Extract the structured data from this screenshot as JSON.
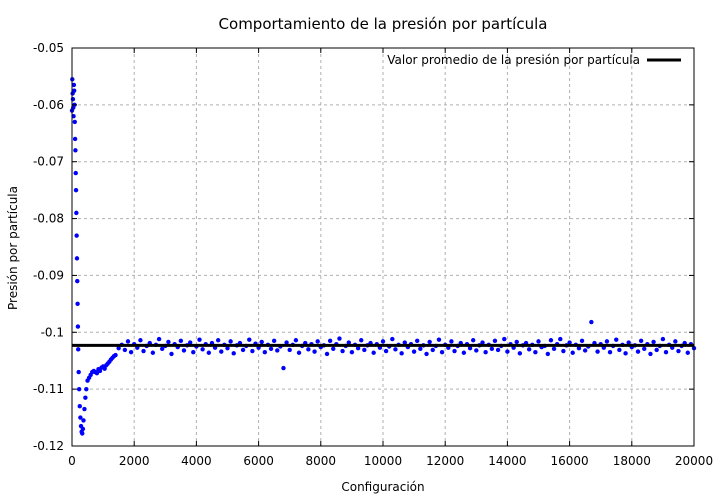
{
  "chart_data": {
    "type": "scatter",
    "title": "Comportamiento de la presión por partícula",
    "xlabel": "Configuración",
    "ylabel": "Presión por partícula",
    "xlim": [
      0,
      20000
    ],
    "ylim": [
      -0.12,
      -0.05
    ],
    "x_ticks": [
      0,
      2000,
      4000,
      6000,
      8000,
      10000,
      12000,
      14000,
      16000,
      18000,
      20000
    ],
    "y_ticks": [
      -0.05,
      -0.06,
      -0.07,
      -0.08,
      -0.09,
      -0.1,
      -0.11,
      -0.12
    ],
    "x_tick_labels": [
      "0",
      "2000",
      "4000",
      "6000",
      "8000",
      "10000",
      "12000",
      "14000",
      "16000",
      "18000",
      "20000"
    ],
    "y_tick_labels": [
      "-0.05",
      "-0.06",
      "-0.07",
      "-0.08",
      "-0.09",
      "-0.1",
      "-0.11",
      "-0.12"
    ],
    "grid": true,
    "legend_position": "top-right",
    "colors": {
      "points": "#0000ff",
      "mean_line": "#000000",
      "grid": "#b0b0b0"
    },
    "series": [
      {
        "type": "scatter",
        "color": "#0000ff",
        "points": [
          [
            0,
            -0.061
          ],
          [
            10,
            -0.0555
          ],
          [
            20,
            -0.058
          ],
          [
            30,
            -0.059
          ],
          [
            40,
            -0.0605
          ],
          [
            50,
            -0.062
          ],
          [
            60,
            -0.0565
          ],
          [
            70,
            -0.0575
          ],
          [
            80,
            -0.06
          ],
          [
            90,
            -0.063
          ],
          [
            100,
            -0.066
          ],
          [
            110,
            -0.068
          ],
          [
            120,
            -0.072
          ],
          [
            130,
            -0.075
          ],
          [
            140,
            -0.079
          ],
          [
            150,
            -0.083
          ],
          [
            160,
            -0.087
          ],
          [
            170,
            -0.091
          ],
          [
            180,
            -0.095
          ],
          [
            190,
            -0.099
          ],
          [
            200,
            -0.103
          ],
          [
            215,
            -0.107
          ],
          [
            230,
            -0.11
          ],
          [
            250,
            -0.113
          ],
          [
            270,
            -0.115
          ],
          [
            290,
            -0.1165
          ],
          [
            310,
            -0.1175
          ],
          [
            330,
            -0.1178
          ],
          [
            350,
            -0.117
          ],
          [
            370,
            -0.1155
          ],
          [
            400,
            -0.1135
          ],
          [
            430,
            -0.1115
          ],
          [
            460,
            -0.11
          ],
          [
            500,
            -0.1085
          ],
          [
            550,
            -0.108
          ],
          [
            600,
            -0.1075
          ],
          [
            650,
            -0.107
          ],
          [
            700,
            -0.1068
          ],
          [
            750,
            -0.107
          ],
          [
            800,
            -0.1072
          ],
          [
            850,
            -0.1065
          ],
          [
            900,
            -0.1068
          ],
          [
            950,
            -0.1062
          ],
          [
            1000,
            -0.106
          ],
          [
            1050,
            -0.1064
          ],
          [
            1100,
            -0.1058
          ],
          [
            1150,
            -0.1055
          ],
          [
            1200,
            -0.1052
          ],
          [
            1250,
            -0.1048
          ],
          [
            1300,
            -0.1045
          ],
          [
            1350,
            -0.1042
          ],
          [
            1400,
            -0.104
          ],
          [
            1500,
            -0.1028
          ],
          [
            1600,
            -0.1022
          ],
          [
            1700,
            -0.1031
          ],
          [
            1800,
            -0.1016
          ],
          [
            1900,
            -0.1035
          ],
          [
            2000,
            -0.1021
          ],
          [
            2100,
            -0.1027
          ],
          [
            2200,
            -0.1014
          ],
          [
            2300,
            -0.1033
          ],
          [
            2400,
            -0.1024
          ],
          [
            2500,
            -0.1019
          ],
          [
            2600,
            -0.1036
          ],
          [
            2700,
            -0.1022
          ],
          [
            2800,
            -0.1012
          ],
          [
            2900,
            -0.1029
          ],
          [
            3000,
            -0.1024
          ],
          [
            3100,
            -0.1017
          ],
          [
            3200,
            -0.1038
          ],
          [
            3300,
            -0.1021
          ],
          [
            3400,
            -0.1026
          ],
          [
            3500,
            -0.1015
          ],
          [
            3600,
            -0.1032
          ],
          [
            3700,
            -0.1023
          ],
          [
            3800,
            -0.1018
          ],
          [
            3900,
            -0.1035
          ],
          [
            4000,
            -0.1025
          ],
          [
            4100,
            -0.1013
          ],
          [
            4200,
            -0.103
          ],
          [
            4300,
            -0.1021
          ],
          [
            4400,
            -0.1036
          ],
          [
            4500,
            -0.1019
          ],
          [
            4600,
            -0.1027
          ],
          [
            4700,
            -0.1014
          ],
          [
            4800,
            -0.1034
          ],
          [
            4900,
            -0.1022
          ],
          [
            5000,
            -0.1028
          ],
          [
            5100,
            -0.1016
          ],
          [
            5200,
            -0.1037
          ],
          [
            5300,
            -0.1023
          ],
          [
            5400,
            -0.1019
          ],
          [
            5500,
            -0.1031
          ],
          [
            5600,
            -0.1024
          ],
          [
            5700,
            -0.1013
          ],
          [
            5800,
            -0.1033
          ],
          [
            5900,
            -0.102
          ],
          [
            6000,
            -0.1027
          ],
          [
            6100,
            -0.1017
          ],
          [
            6200,
            -0.1035
          ],
          [
            6300,
            -0.1022
          ],
          [
            6400,
            -0.1029
          ],
          [
            6500,
            -0.1015
          ],
          [
            6600,
            -0.1032
          ],
          [
            6700,
            -0.1025
          ],
          [
            6800,
            -0.1063
          ],
          [
            6900,
            -0.1018
          ],
          [
            7000,
            -0.1031
          ],
          [
            7100,
            -0.1022
          ],
          [
            7200,
            -0.1014
          ],
          [
            7300,
            -0.1036
          ],
          [
            7400,
            -0.1024
          ],
          [
            7500,
            -0.1019
          ],
          [
            7600,
            -0.103
          ],
          [
            7700,
            -0.1021
          ],
          [
            7800,
            -0.1034
          ],
          [
            7900,
            -0.1016
          ],
          [
            8000,
            -0.1026
          ],
          [
            8100,
            -0.1023
          ],
          [
            8200,
            -0.1038
          ],
          [
            8300,
            -0.1015
          ],
          [
            8400,
            -0.1029
          ],
          [
            8500,
            -0.1021
          ],
          [
            8600,
            -0.1011
          ],
          [
            8700,
            -0.1033
          ],
          [
            8800,
            -0.1024
          ],
          [
            8900,
            -0.1018
          ],
          [
            9000,
            -0.1035
          ],
          [
            9100,
            -0.1022
          ],
          [
            9200,
            -0.1028
          ],
          [
            9300,
            -0.1014
          ],
          [
            9400,
            -0.1031
          ],
          [
            9500,
            -0.1023
          ],
          [
            9600,
            -0.1019
          ],
          [
            9700,
            -0.1036
          ],
          [
            9800,
            -0.1021
          ],
          [
            9900,
            -0.1027
          ],
          [
            10000,
            -0.1016
          ],
          [
            10100,
            -0.1033
          ],
          [
            10200,
            -0.1025
          ],
          [
            10300,
            -0.1012
          ],
          [
            10400,
            -0.103
          ],
          [
            10500,
            -0.1022
          ],
          [
            10600,
            -0.1037
          ],
          [
            10700,
            -0.1018
          ],
          [
            10800,
            -0.1026
          ],
          [
            10900,
            -0.1021
          ],
          [
            11000,
            -0.1034
          ],
          [
            11100,
            -0.1015
          ],
          [
            11200,
            -0.1029
          ],
          [
            11300,
            -0.1023
          ],
          [
            11400,
            -0.1038
          ],
          [
            11500,
            -0.1017
          ],
          [
            11600,
            -0.1031
          ],
          [
            11700,
            -0.1024
          ],
          [
            11800,
            -0.1013
          ],
          [
            11900,
            -0.1035
          ],
          [
            12000,
            -0.1022
          ],
          [
            12100,
            -0.1027
          ],
          [
            12200,
            -0.1016
          ],
          [
            12300,
            -0.1033
          ],
          [
            12400,
            -0.1024
          ],
          [
            12500,
            -0.1019
          ],
          [
            12600,
            -0.1036
          ],
          [
            12700,
            -0.1021
          ],
          [
            12800,
            -0.1028
          ],
          [
            12900,
            -0.1014
          ],
          [
            13000,
            -0.1032
          ],
          [
            13100,
            -0.1023
          ],
          [
            13200,
            -0.1018
          ],
          [
            13300,
            -0.1035
          ],
          [
            13400,
            -0.1022
          ],
          [
            13500,
            -0.1029
          ],
          [
            13600,
            -0.1015
          ],
          [
            13700,
            -0.1031
          ],
          [
            13800,
            -0.1024
          ],
          [
            13900,
            -0.1012
          ],
          [
            14000,
            -0.1034
          ],
          [
            14100,
            -0.1021
          ],
          [
            14200,
            -0.1027
          ],
          [
            14300,
            -0.1017
          ],
          [
            14400,
            -0.1037
          ],
          [
            14500,
            -0.1023
          ],
          [
            14600,
            -0.1019
          ],
          [
            14700,
            -0.103
          ],
          [
            14800,
            -0.1022
          ],
          [
            14900,
            -0.1035
          ],
          [
            15000,
            -0.1016
          ],
          [
            15100,
            -0.1026
          ],
          [
            15200,
            -0.1024
          ],
          [
            15300,
            -0.1038
          ],
          [
            15400,
            -0.1014
          ],
          [
            15500,
            -0.1029
          ],
          [
            15600,
            -0.1021
          ],
          [
            15700,
            -0.1012
          ],
          [
            15800,
            -0.1033
          ],
          [
            15900,
            -0.1023
          ],
          [
            16000,
            -0.1018
          ],
          [
            16100,
            -0.1036
          ],
          [
            16200,
            -0.1022
          ],
          [
            16300,
            -0.1028
          ],
          [
            16400,
            -0.1015
          ],
          [
            16500,
            -0.1032
          ],
          [
            16600,
            -0.1025
          ],
          [
            16700,
            -0.0982
          ],
          [
            16800,
            -0.1019
          ],
          [
            16900,
            -0.1034
          ],
          [
            17000,
            -0.1021
          ],
          [
            17100,
            -0.1027
          ],
          [
            17200,
            -0.1016
          ],
          [
            17300,
            -0.1035
          ],
          [
            17400,
            -0.1024
          ],
          [
            17500,
            -0.1013
          ],
          [
            17600,
            -0.1031
          ],
          [
            17700,
            -0.1022
          ],
          [
            17800,
            -0.1037
          ],
          [
            17900,
            -0.1018
          ],
          [
            18000,
            -0.1026
          ],
          [
            18100,
            -0.1023
          ],
          [
            18200,
            -0.1034
          ],
          [
            18300,
            -0.1015
          ],
          [
            18400,
            -0.1029
          ],
          [
            18500,
            -0.1021
          ],
          [
            18600,
            -0.1038
          ],
          [
            18700,
            -0.1017
          ],
          [
            18800,
            -0.1031
          ],
          [
            18900,
            -0.1024
          ],
          [
            19000,
            -0.1012
          ],
          [
            19100,
            -0.1035
          ],
          [
            19200,
            -0.1022
          ],
          [
            19300,
            -0.1027
          ],
          [
            19400,
            -0.1016
          ],
          [
            19500,
            -0.1033
          ],
          [
            19600,
            -0.1024
          ],
          [
            19700,
            -0.1019
          ],
          [
            19800,
            -0.1036
          ],
          [
            19900,
            -0.1021
          ],
          [
            20000,
            -0.1028
          ]
        ]
      },
      {
        "name": "Valor promedio de la presión por partícula",
        "type": "line",
        "color": "#000000",
        "points": [
          [
            0,
            -0.1023
          ],
          [
            20000,
            -0.1023
          ]
        ]
      }
    ]
  }
}
